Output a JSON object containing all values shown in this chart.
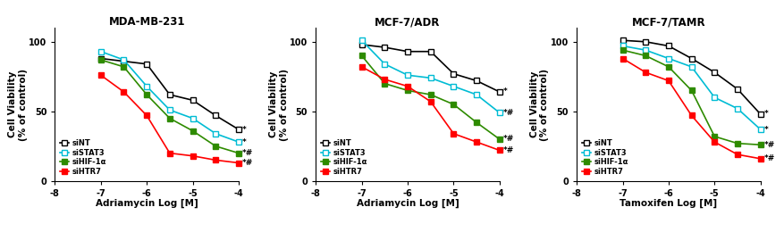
{
  "panels": [
    {
      "title": "MDA-MB-231",
      "xlabel": "Adriamycin Log [M]",
      "xlim": [
        -8,
        -4
      ],
      "xticks": [
        -8,
        -7,
        -6,
        -5,
        -4
      ],
      "ylim": [
        0,
        110
      ],
      "yticks": [
        0,
        50,
        100
      ],
      "annotations": [
        {
          "text": "*",
          "y": 37
        },
        {
          "text": "*",
          "y": 28
        },
        {
          "text": "*#",
          "y": 20
        },
        {
          "text": "*#",
          "y": 13
        }
      ],
      "series": [
        {
          "label": "siNT",
          "color": "black",
          "fill": false,
          "x": [
            -7,
            -6.5,
            -6,
            -5.5,
            -5,
            -4.5,
            -4
          ],
          "y": [
            88,
            86,
            84,
            62,
            58,
            47,
            37
          ]
        },
        {
          "label": "siSTAT3",
          "color": "#00bcd4",
          "fill": false,
          "x": [
            -7,
            -6.5,
            -6,
            -5.5,
            -5,
            -4.5,
            -4
          ],
          "y": [
            93,
            87,
            68,
            51,
            45,
            34,
            28
          ]
        },
        {
          "label": "siHIF-1α",
          "color": "#2e8b00",
          "fill": true,
          "x": [
            -7,
            -6.5,
            -6,
            -5.5,
            -5,
            -4.5,
            -4
          ],
          "y": [
            87,
            82,
            62,
            45,
            36,
            25,
            20
          ]
        },
        {
          "label": "siHTR7",
          "color": "red",
          "fill": true,
          "x": [
            -7,
            -6.5,
            -6,
            -5.5,
            -5,
            -4.5,
            -4
          ],
          "y": [
            76,
            64,
            47,
            20,
            18,
            15,
            13
          ]
        }
      ]
    },
    {
      "title": "MCF-7/ADR",
      "xlabel": "Adriamycin Log [M]",
      "xlim": [
        -8,
        -4
      ],
      "xticks": [
        -8,
        -7,
        -6,
        -5,
        -4
      ],
      "ylim": [
        0,
        110
      ],
      "yticks": [
        0,
        50,
        100
      ],
      "annotations": [
        {
          "text": "*",
          "y": 64
        },
        {
          "text": "*#",
          "y": 49
        },
        {
          "text": "*#",
          "y": 30
        },
        {
          "text": "*#",
          "y": 22
        }
      ],
      "series": [
        {
          "label": "siNT",
          "color": "black",
          "fill": false,
          "x": [
            -7,
            -6.5,
            -6,
            -5.5,
            -5,
            -4.5,
            -4
          ],
          "y": [
            98,
            96,
            93,
            93,
            77,
            72,
            64
          ]
        },
        {
          "label": "siSTAT3",
          "color": "#00bcd4",
          "fill": false,
          "x": [
            -7,
            -6.5,
            -6,
            -5.5,
            -5,
            -4.5,
            -4
          ],
          "y": [
            101,
            84,
            76,
            74,
            68,
            62,
            49
          ]
        },
        {
          "label": "siHIF-1α",
          "color": "#2e8b00",
          "fill": true,
          "x": [
            -7,
            -6.5,
            -6,
            -5.5,
            -5,
            -4.5,
            -4
          ],
          "y": [
            90,
            70,
            65,
            62,
            55,
            42,
            30
          ]
        },
        {
          "label": "siHTR7",
          "color": "red",
          "fill": true,
          "x": [
            -7,
            -6.5,
            -6,
            -5.5,
            -5,
            -4.5,
            -4
          ],
          "y": [
            82,
            73,
            68,
            57,
            34,
            28,
            22
          ]
        }
      ]
    },
    {
      "title": "MCF-7/TAMR",
      "xlabel": "Tamoxifen Log [M]",
      "xlim": [
        -8,
        -4
      ],
      "xticks": [
        -8,
        -7,
        -6,
        -5,
        -4
      ],
      "ylim": [
        0,
        110
      ],
      "yticks": [
        0,
        50,
        100
      ],
      "annotations": [
        {
          "text": "*",
          "y": 48
        },
        {
          "text": "*",
          "y": 37
        },
        {
          "text": "*#",
          "y": 26
        },
        {
          "text": "*#",
          "y": 16
        }
      ],
      "series": [
        {
          "label": "siNT",
          "color": "black",
          "fill": false,
          "x": [
            -7,
            -6.5,
            -6,
            -5.5,
            -5,
            -4.5,
            -4
          ],
          "y": [
            101,
            100,
            97,
            88,
            78,
            66,
            48
          ]
        },
        {
          "label": "siSTAT3",
          "color": "#00bcd4",
          "fill": false,
          "x": [
            -7,
            -6.5,
            -6,
            -5.5,
            -5,
            -4.5,
            -4
          ],
          "y": [
            97,
            94,
            88,
            82,
            60,
            52,
            37
          ]
        },
        {
          "label": "siHIF-1α",
          "color": "#2e8b00",
          "fill": true,
          "x": [
            -7,
            -6.5,
            -6,
            -5.5,
            -5,
            -4.5,
            -4
          ],
          "y": [
            94,
            90,
            82,
            65,
            32,
            27,
            26
          ]
        },
        {
          "label": "siHTR7",
          "color": "red",
          "fill": true,
          "x": [
            -7,
            -6.5,
            -6,
            -5.5,
            -5,
            -4.5,
            -4
          ],
          "y": [
            88,
            78,
            72,
            47,
            28,
            19,
            16
          ]
        }
      ]
    }
  ],
  "ylabel": "Cell Viability\n(% of control)",
  "legend_entries": [
    "siNT",
    "siSTAT3",
    "siHIF-1α",
    "siHTR7"
  ],
  "legend_colors": [
    "black",
    "#00bcd4",
    "#2e8b00",
    "red"
  ],
  "legend_fills": [
    false,
    false,
    true,
    true
  ]
}
